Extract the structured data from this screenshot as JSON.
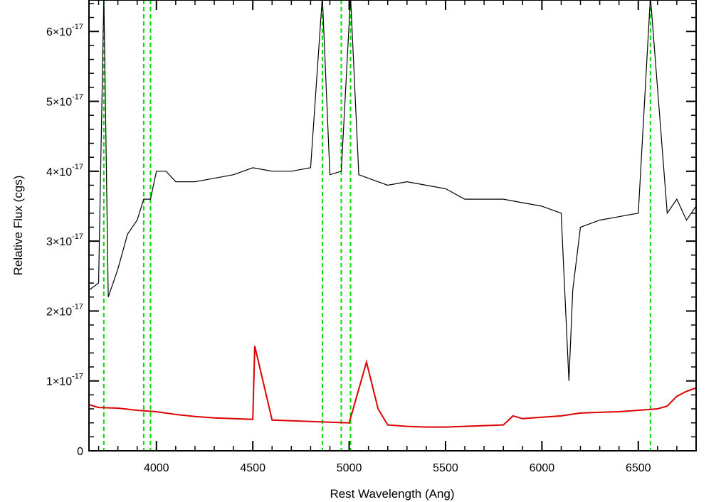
{
  "chart_data": {
    "type": "line",
    "xlabel": "Rest Wavelength (Ang)",
    "ylabel": "Relative Flux (cgs)",
    "xlim": [
      3650,
      6800
    ],
    "ylim": [
      0,
      6.45e-17
    ],
    "x_ticks": [
      {
        "value": 4000,
        "label": "4000"
      },
      {
        "value": 4500,
        "label": "4500"
      },
      {
        "value": 5000,
        "label": "5000"
      },
      {
        "value": 5500,
        "label": "5500"
      },
      {
        "value": 6000,
        "label": "6000"
      },
      {
        "value": 6500,
        "label": "6500"
      }
    ],
    "y_ticks": [
      {
        "value": 0,
        "mantissa": "0",
        "exponent": ""
      },
      {
        "value": 1e-17,
        "mantissa": "1×10",
        "exponent": "-17"
      },
      {
        "value": 2e-17,
        "mantissa": "2×10",
        "exponent": "-17"
      },
      {
        "value": 3e-17,
        "mantissa": "3×10",
        "exponent": "-17"
      },
      {
        "value": 4e-17,
        "mantissa": "4×10",
        "exponent": "-17"
      },
      {
        "value": 5e-17,
        "mantissa": "5×10",
        "exponent": "-17"
      },
      {
        "value": 6e-17,
        "mantissa": "6×10",
        "exponent": "-17"
      }
    ],
    "reference_lines": [
      3727,
      3934,
      3969,
      4861,
      4959,
      5007,
      6563
    ],
    "series": [
      {
        "color": "#000000",
        "x": [
          3650,
          3700,
          3727,
          3750,
          3800,
          3850,
          3900,
          3934,
          3969,
          4000,
          4050,
          4100,
          4150,
          4200,
          4300,
          4400,
          4500,
          4600,
          4700,
          4800,
          4861,
          4900,
          4959,
          5007,
          5050,
          5100,
          5200,
          5300,
          5400,
          5500,
          5600,
          5700,
          5800,
          5900,
          6000,
          6050,
          6100,
          6140,
          6160,
          6200,
          6300,
          6400,
          6500,
          6563,
          6650,
          6700,
          6750,
          6800
        ],
        "y": [
          2.3e-17,
          2.4e-17,
          6.5e-17,
          2.2e-17,
          2.6e-17,
          3.1e-17,
          3.3e-17,
          3.6e-17,
          3.6e-17,
          4e-17,
          4e-17,
          3.85e-17,
          3.85e-17,
          3.85e-17,
          3.9e-17,
          3.95e-17,
          4.05e-17,
          4e-17,
          4e-17,
          4.05e-17,
          6.5e-17,
          3.95e-17,
          4e-17,
          6.5e-17,
          3.95e-17,
          3.9e-17,
          3.8e-17,
          3.85e-17,
          3.8e-17,
          3.75e-17,
          3.6e-17,
          3.6e-17,
          3.6e-17,
          3.55e-17,
          3.5e-17,
          3.45e-17,
          3.4e-17,
          1e-17,
          2.3e-17,
          3.2e-17,
          3.3e-17,
          3.35e-17,
          3.4e-17,
          6.5e-17,
          3.4e-17,
          3.6e-17,
          3.3e-17,
          3.5e-17
        ]
      },
      {
        "color": "#dd0000",
        "x": [
          3650,
          3700,
          3800,
          3900,
          4000,
          4100,
          4200,
          4300,
          4400,
          4500,
          4510,
          4600,
          4700,
          4800,
          4900,
          5000,
          5090,
          5150,
          5200,
          5300,
          5400,
          5500,
          5600,
          5700,
          5800,
          5850,
          5900,
          6000,
          6100,
          6200,
          6300,
          6400,
          6500,
          6600,
          6650,
          6700,
          6750,
          6800
        ],
        "y": [
          6.6e-18,
          6.2e-18,
          6.1e-18,
          5.8e-18,
          5.6e-18,
          5.2e-18,
          4.9e-18,
          4.7e-18,
          4.6e-18,
          4.5e-18,
          1.5e-17,
          4.4e-18,
          4.3e-18,
          4.2e-18,
          4.1e-18,
          4e-18,
          1.27e-17,
          6e-18,
          3.7e-18,
          3.5e-18,
          3.4e-18,
          3.4e-18,
          3.5e-18,
          3.6e-18,
          3.7e-18,
          5e-18,
          4.6e-18,
          4.8e-18,
          5e-18,
          5.4e-18,
          5.5e-18,
          5.6e-18,
          5.8e-18,
          6e-18,
          6.4e-18,
          7.8e-18,
          8.5e-18,
          9e-18
        ]
      }
    ]
  }
}
